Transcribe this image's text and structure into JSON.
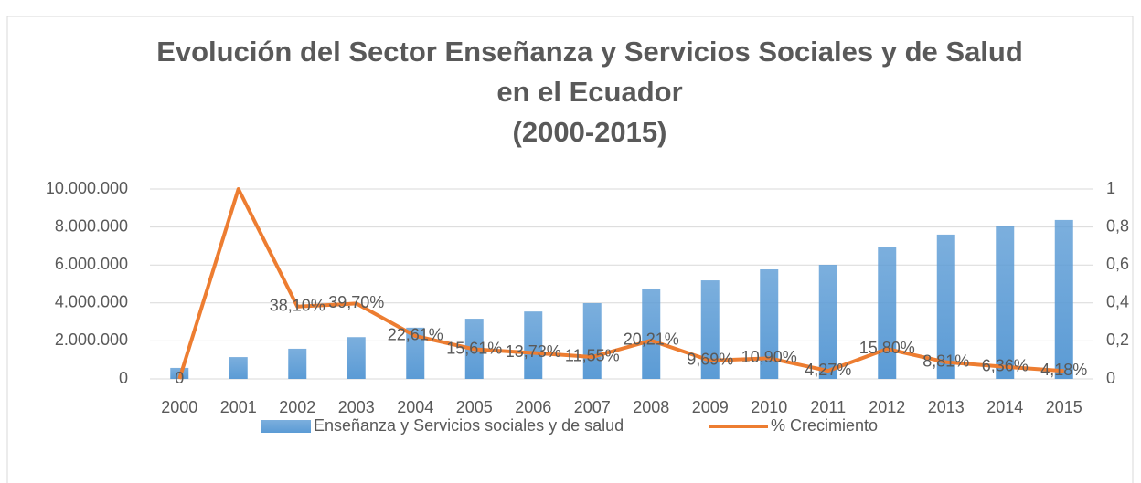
{
  "chart_data": {
    "type": "bar-line",
    "title": [
      "Evolución del Sector Enseñanza  y Servicios Sociales y de Salud",
      "en el Ecuador",
      "(2000-2015)"
    ],
    "categories": [
      "2000",
      "2001",
      "2002",
      "2003",
      "2004",
      "2005",
      "2006",
      "2007",
      "2008",
      "2009",
      "2010",
      "2011",
      "2012",
      "2013",
      "2014",
      "2015"
    ],
    "series": [
      {
        "name": "Enseñanza  y Servicios sociales y de salud",
        "type": "bar",
        "color": "#5b9bd5",
        "values": [
          580000,
          1150000,
          1590000,
          2200000,
          2700000,
          3170000,
          3550000,
          3990000,
          4760000,
          5190000,
          5770000,
          6010000,
          6970000,
          7600000,
          8030000,
          8370000
        ]
      },
      {
        "name": "% Crecimiento",
        "type": "line",
        "axis": "y2",
        "color": "#ed7d31",
        "values": [
          0,
          1,
          0.381,
          0.397,
          0.2261,
          0.1561,
          0.1373,
          0.1155,
          0.2021,
          0.0969,
          0.109,
          0.0427,
          0.158,
          0.0881,
          0.0636,
          0.0418
        ],
        "value_labels": [
          "0",
          null,
          "38,10%",
          "39,70%",
          "22,61%",
          "15,61%",
          "13,73%",
          "11,55%",
          "20,21%",
          "9,69%",
          "10,90%",
          "4,27%",
          "15,80%",
          "8,81%",
          "6,36%",
          "4,18%"
        ]
      }
    ],
    "ylim": [
      0,
      10000000
    ],
    "yticks": [
      0,
      {
        "value": 2000000,
        "label": "2.000.000"
      },
      {
        "value": 4000000,
        "label": "4.000.000"
      },
      {
        "value": 6000000,
        "label": "6.000.000"
      },
      {
        "value": 8000000,
        "label": "8.000.000"
      },
      {
        "value": 10000000,
        "label": "10.000.000"
      }
    ],
    "y2lim": [
      0,
      1
    ],
    "y2ticks": [
      0,
      {
        "value": 0.2,
        "label": "0,2"
      },
      {
        "value": 0.4,
        "label": "0,4"
      },
      {
        "value": 0.6,
        "label": "0,6"
      },
      {
        "value": 0.8,
        "label": "0,8"
      },
      1
    ],
    "grid": true,
    "legend": "bottom"
  }
}
